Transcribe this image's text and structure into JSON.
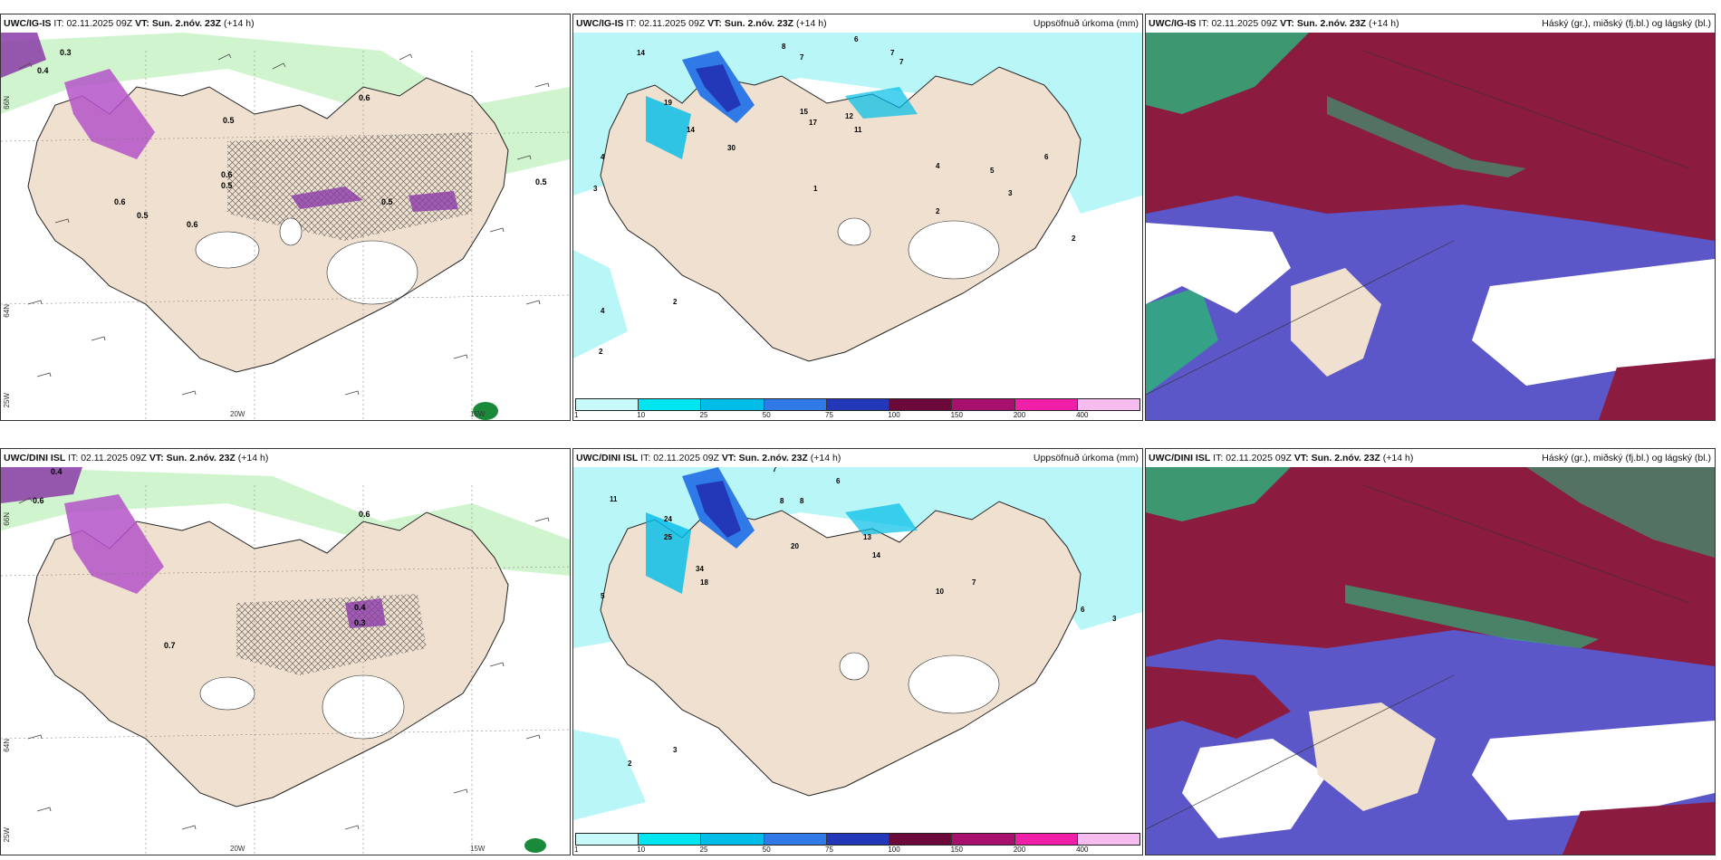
{
  "panels": [
    {
      "model": "UWC/IG-IS",
      "it_label": "IT:",
      "it": "02.11.2025 09Z",
      "vt_label": "VT:",
      "vt": "Sun. 2.nóv. 23Z",
      "lead": "(+14 h)",
      "right": ""
    },
    {
      "model": "UWC/IG-IS",
      "it_label": "IT:",
      "it": "02.11.2025 09Z",
      "vt_label": "VT:",
      "vt": "Sun. 2.nóv. 23Z",
      "lead": "(+14 h)",
      "right": "Uppsöfnuð úrkoma (mm)"
    },
    {
      "model": "UWC/IG-IS",
      "it_label": "IT:",
      "it": "02.11.2025 09Z",
      "vt_label": "VT:",
      "vt": "Sun. 2.nóv. 23Z",
      "lead": "(+14 h)",
      "right": "Háský (gr.), miðský (fj.bl.) og lágský (bl.)"
    },
    {
      "model": "UWC/DINI ISL",
      "it_label": "IT:",
      "it": "02.11.2025 09Z",
      "vt_label": "VT:",
      "vt": "Sun. 2.nóv. 23Z",
      "lead": "(+14 h)",
      "right": ""
    },
    {
      "model": "UWC/DINI ISL",
      "it_label": "IT:",
      "it": "02.11.2025 09Z",
      "vt_label": "VT:",
      "vt": "Sun. 2.nóv. 23Z",
      "lead": "(+14 h)",
      "right": "Uppsöfnuð úrkoma (mm)"
    },
    {
      "model": "UWC/DINI ISL",
      "it_label": "IT:",
      "it": "02.11.2025 09Z",
      "vt_label": "VT:",
      "vt": "Sun. 2.nóv. 23Z",
      "lead": "(+14 h)",
      "right": "Háský (gr.), miðský (fj.bl.) og lágský (bl.)"
    }
  ],
  "gridlabels": {
    "lat_top": "66N",
    "lat_mid": "64N",
    "lon_left": "25W",
    "lon_a": "20W",
    "lon_b": "15W"
  },
  "precip_legend": {
    "ticks": [
      "1",
      "10",
      "25",
      "50",
      "75",
      "100",
      "150",
      "200",
      "400"
    ],
    "colors": [
      "#c8fafa",
      "#00e5f0",
      "#00bde8",
      "#2f7ae6",
      "#2238b8",
      "#6b0a3a",
      "#a8106e",
      "#f01fa8",
      "#f6bcf0"
    ]
  },
  "map_colors": {
    "land": "#efe0cf",
    "precip_light": "#b9f6f8",
    "cloud_high": "#2fae7a",
    "cloud_mid": "#8b1b3f",
    "cloud_low": "#5b57c9",
    "wind_green": "#b8f3b8",
    "snow_purple": "#b454c8"
  },
  "numbers": {
    "p1": [
      "0.3",
      "0.4",
      "0.6",
      "0.5",
      "0.6",
      "0.5",
      "0.6",
      "0.5",
      "0.6",
      "0.5",
      "0.5"
    ],
    "p2": [
      "14",
      "8",
      "7",
      "6",
      "7",
      "7",
      "19",
      "14",
      "30",
      "15",
      "17",
      "12",
      "11",
      "3",
      "2",
      "4",
      "6",
      "5",
      "4",
      "1",
      "2",
      "3",
      "4",
      "2",
      "2"
    ],
    "p4": [
      "0.4",
      "0.6",
      "0.6",
      "0.7",
      "0.3",
      "0.4"
    ],
    "p5": [
      "11",
      "7",
      "6",
      "8",
      "8",
      "24",
      "25",
      "13",
      "20",
      "14",
      "18",
      "34",
      "6",
      "7",
      "10",
      "3",
      "2",
      "5",
      "3"
    ]
  }
}
